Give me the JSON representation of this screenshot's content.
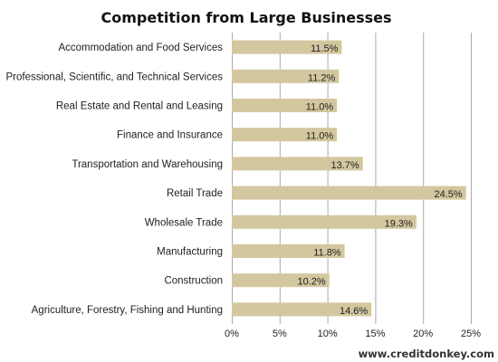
{
  "chart_data": {
    "type": "bar",
    "orientation": "horizontal",
    "title": "Competition from Large Businesses",
    "categories": [
      "Accommodation and Food Services",
      "Professional, Scientific, and Technical Services",
      "Real Estate and Rental and Leasing",
      "Finance and Insurance",
      "Transportation and Warehousing",
      "Retail Trade",
      "Wholesale Trade",
      "Manufacturing",
      "Construction",
      "Agriculture, Forestry, Fishing and Hunting"
    ],
    "values": [
      11.5,
      11.2,
      11.0,
      11.0,
      13.7,
      24.5,
      19.3,
      11.8,
      10.2,
      14.6
    ],
    "data_labels": [
      "11.5%",
      "11.2%",
      "11.0%",
      "11.0%",
      "13.7%",
      "24.5%",
      "19.3%",
      "11.8%",
      "10.2%",
      "14.6%"
    ],
    "xlim": [
      0,
      25
    ],
    "xticks": [
      0,
      5,
      10,
      15,
      20,
      25
    ],
    "xtick_labels": [
      "0%",
      "5%",
      "10%",
      "15%",
      "20%",
      "25%"
    ],
    "grid": "vertical",
    "bar_color": "#d3c79f",
    "grid_color": "#aaaaaa",
    "watermark": "www.creditdonkey.com"
  }
}
